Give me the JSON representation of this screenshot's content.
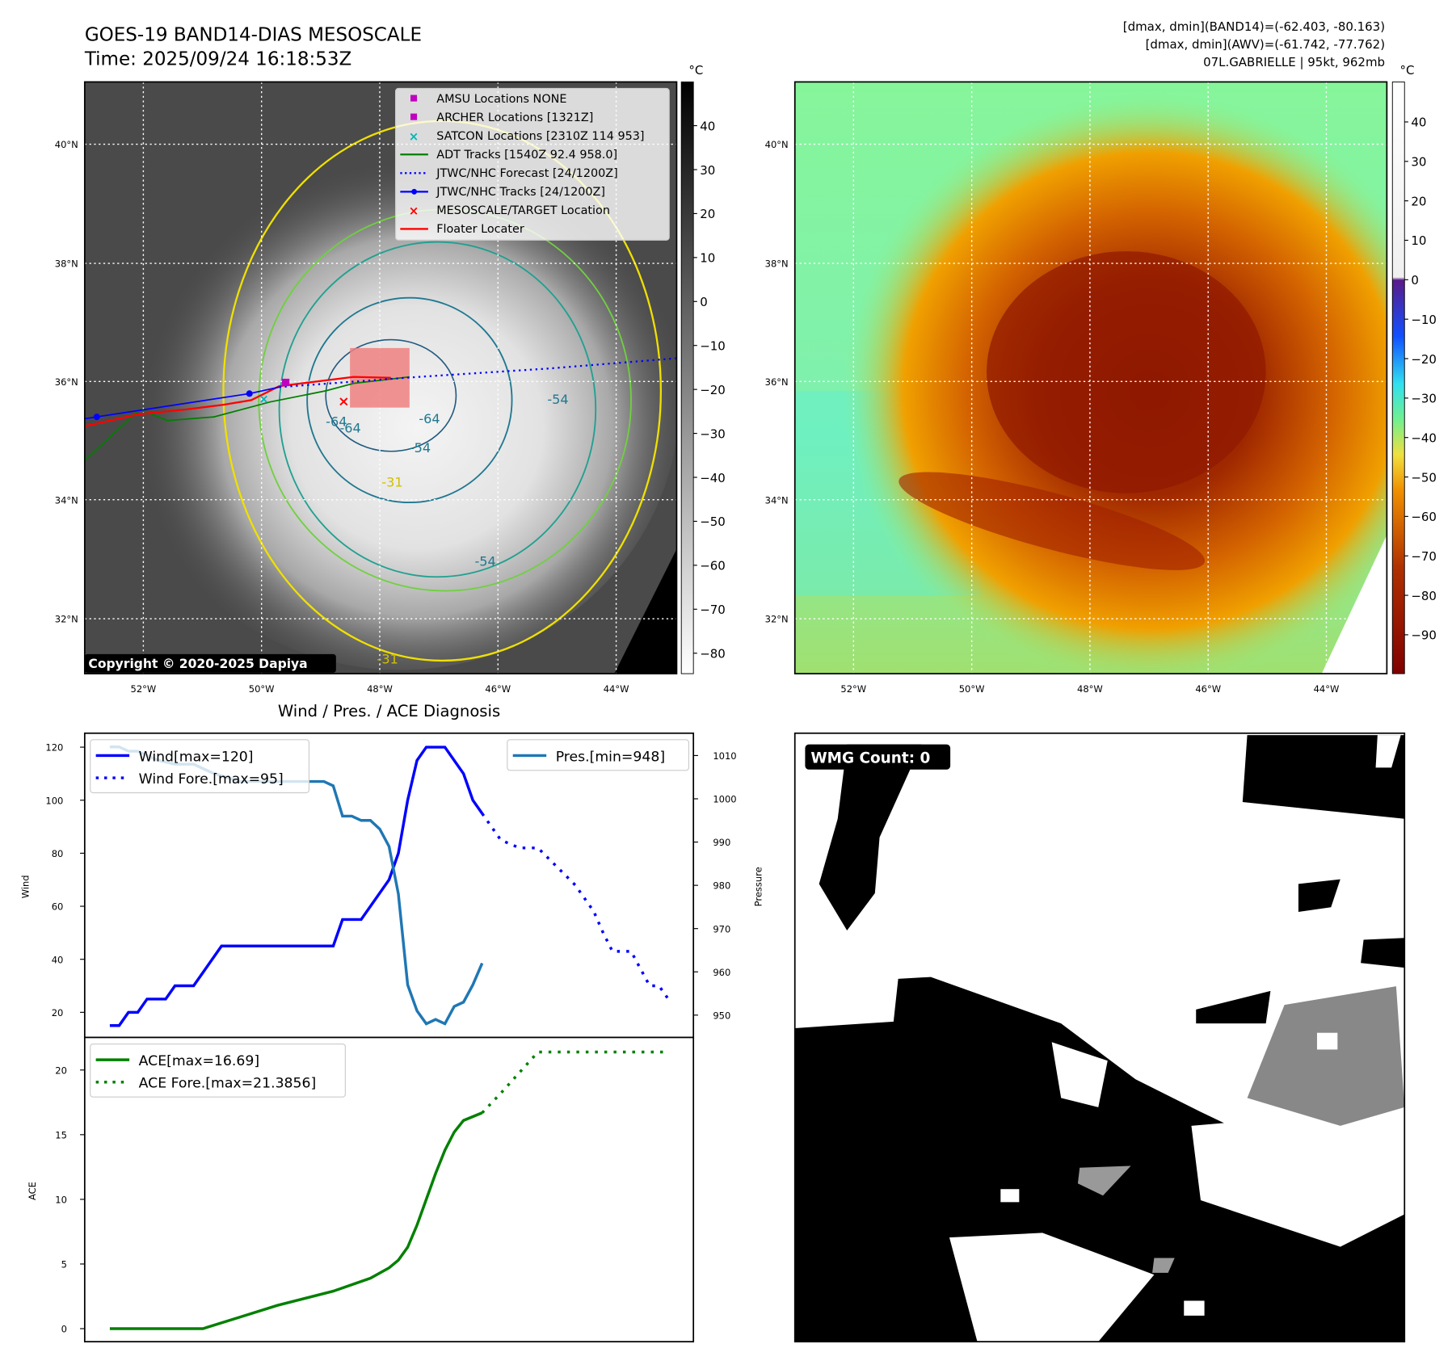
{
  "header": {
    "title": "GOES-19 BAND14-DIAS MESOSCALE",
    "time": "Time: 2025/09/24 16:18:53Z",
    "info_line1": "[dmax, dmin](BAND14)=(-62.403, -80.163)",
    "info_line2": "[dmax, dmin](AWV)=(-61.742, -77.762)",
    "info_line3": "07L.GABRIELLE | 95kt, 962mb"
  },
  "maps": {
    "unit": "°C",
    "lat_labels": [
      "40°N",
      "38°N",
      "36°N",
      "34°N",
      "32°N"
    ],
    "lon_labels": [
      "52°W",
      "50°W",
      "48°W",
      "46°W",
      "44°W"
    ],
    "left_colorbar_ticks": [
      "40",
      "30",
      "20",
      "10",
      "0",
      "−10",
      "−20",
      "−30",
      "−40",
      "−50",
      "−60",
      "−70",
      "−80"
    ],
    "right_colorbar_ticks": [
      "40",
      "30",
      "20",
      "10",
      "0",
      "−10",
      "−20",
      "−30",
      "−40",
      "−50",
      "−60",
      "−70",
      "−80",
      "−90"
    ],
    "contour_labels": [
      "-64",
      "-64",
      "-54",
      "-54",
      "-54",
      "-31",
      "-31",
      "-64"
    ],
    "copyright": "Copyright © 2020-2025 Dapiya",
    "legend": [
      {
        "label": "AMSU Locations NONE",
        "color": "#c000c0",
        "marker": "square"
      },
      {
        "label": "ARCHER Locations [1321Z]",
        "color": "#c000c0",
        "marker": "square"
      },
      {
        "label": "SATCON Locations [2310Z 114 953]",
        "color": "#00b5b5",
        "marker": "x"
      },
      {
        "label": "ADT Tracks [1540Z 92.4 958.0]",
        "color": "#007f00",
        "marker": "line"
      },
      {
        "label": "JTWC/NHC Forecast [24/1200Z]",
        "color": "#0000ff",
        "marker": "dotted"
      },
      {
        "label": "JTWC/NHC Tracks [24/1200Z]",
        "color": "#0000ff",
        "marker": "line-dot"
      },
      {
        "label": "MESOSCALE/TARGET Location",
        "color": "#ff0000",
        "marker": "x"
      },
      {
        "label": "Floater Locater",
        "color": "#ff0000",
        "marker": "line"
      }
    ]
  },
  "wmg": {
    "label": "WMG Count: 0"
  },
  "chart_data": [
    {
      "type": "line",
      "title": "Wind / Pres. / ACE Diagnosis",
      "ylabel": "Wind",
      "y2label": "Pressure",
      "ylim": [
        10,
        125
      ],
      "y2lim": [
        945,
        1015
      ],
      "yticks": [
        20,
        40,
        60,
        80,
        100,
        120
      ],
      "y2ticks": [
        950,
        960,
        970,
        980,
        990,
        1000,
        1010
      ],
      "series": [
        {
          "name": "Wind[max=120]",
          "color": "#0000ff",
          "style": "solid",
          "points": [
            [
              0,
              15
            ],
            [
              1,
              15
            ],
            [
              2,
              20
            ],
            [
              3,
              20
            ],
            [
              4,
              25
            ],
            [
              6,
              25
            ],
            [
              7,
              30
            ],
            [
              9,
              30
            ],
            [
              12,
              45
            ],
            [
              24,
              45
            ],
            [
              25,
              55
            ],
            [
              27,
              55
            ],
            [
              30,
              70
            ],
            [
              31,
              80
            ],
            [
              32,
              100
            ],
            [
              33,
              115
            ],
            [
              34,
              120
            ],
            [
              36,
              120
            ],
            [
              38,
              110
            ],
            [
              39,
              100
            ],
            [
              40,
              95
            ]
          ]
        },
        {
          "name": "Wind Fore.[max=95]",
          "color": "#0000ff",
          "style": "dotted",
          "points": [
            [
              40,
              95
            ],
            [
              42,
              85
            ],
            [
              44,
              82
            ],
            [
              46,
              82
            ],
            [
              48,
              75
            ],
            [
              50,
              68
            ],
            [
              52,
              58
            ],
            [
              53,
              50
            ],
            [
              54,
              43
            ],
            [
              56,
              43
            ],
            [
              58,
              30
            ],
            [
              59,
              30
            ],
            [
              60,
              25
            ]
          ]
        },
        {
          "name": "Pres.[min=948]",
          "color": "#1f77b4",
          "style": "solid",
          "axis": "right",
          "points": [
            [
              0,
              1012
            ],
            [
              1,
              1012
            ],
            [
              2,
              1011
            ],
            [
              3,
              1011
            ],
            [
              5,
              1009
            ],
            [
              7,
              1008
            ],
            [
              9,
              1008
            ],
            [
              11,
              1006
            ],
            [
              14,
              1004
            ],
            [
              23,
              1004
            ],
            [
              24,
              1003
            ],
            [
              25,
              996
            ],
            [
              26,
              996
            ],
            [
              27,
              995
            ],
            [
              28,
              995
            ],
            [
              29,
              993
            ],
            [
              30,
              989
            ],
            [
              31,
              978
            ],
            [
              32,
              957
            ],
            [
              33,
              951
            ],
            [
              34,
              948
            ],
            [
              35,
              949
            ],
            [
              36,
              948
            ],
            [
              37,
              952
            ],
            [
              38,
              953
            ],
            [
              39,
              957
            ],
            [
              40,
              962
            ]
          ]
        }
      ]
    },
    {
      "type": "line",
      "ylabel": "ACE",
      "ylim": [
        -1,
        22.5
      ],
      "yticks": [
        0,
        5,
        10,
        15,
        20
      ],
      "series": [
        {
          "name": "ACE[max=16.69]",
          "color": "#008000",
          "style": "solid",
          "points": [
            [
              0,
              0
            ],
            [
              10,
              0
            ],
            [
              14,
              0.9
            ],
            [
              18,
              1.8
            ],
            [
              24,
              2.9
            ],
            [
              28,
              3.9
            ],
            [
              30,
              4.7
            ],
            [
              31,
              5.3
            ],
            [
              32,
              6.3
            ],
            [
              33,
              8
            ],
            [
              34,
              10
            ],
            [
              35,
              12
            ],
            [
              36,
              13.8
            ],
            [
              37,
              15.2
            ],
            [
              38,
              16.1
            ],
            [
              40,
              16.69
            ]
          ]
        },
        {
          "name": "ACE Fore.[max=21.3856]",
          "color": "#008000",
          "style": "dotted",
          "points": [
            [
              40,
              16.69
            ],
            [
              42,
              18.2
            ],
            [
              44,
              19.8
            ],
            [
              46,
              21.39
            ],
            [
              59.5,
              21.39
            ]
          ]
        }
      ]
    }
  ]
}
